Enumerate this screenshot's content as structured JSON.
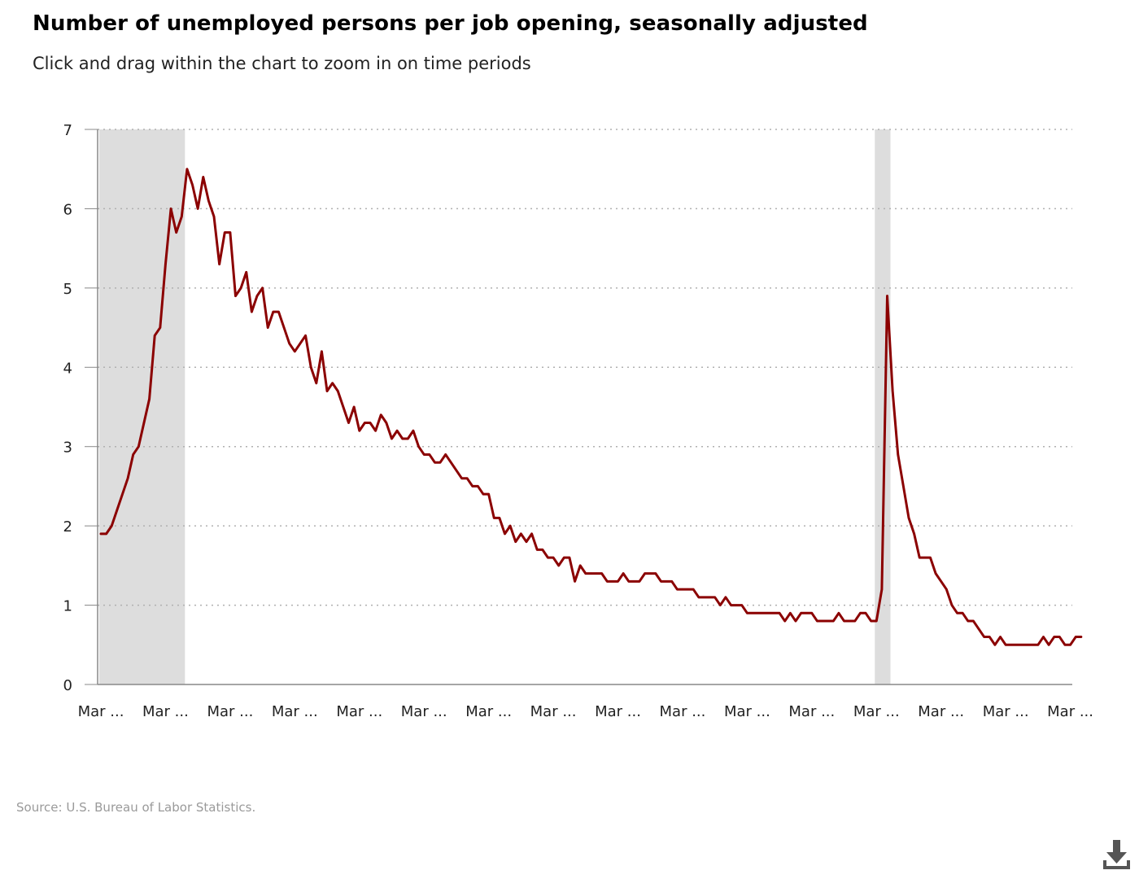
{
  "title": "Number of unemployed persons per job opening, seasonally adjusted",
  "subtitle": "Click and drag within the chart to zoom in on time periods",
  "source": "Source: U.S. Bureau of Labor Statistics.",
  "download_icon": "download-icon",
  "colors": {
    "line": "#8b0000",
    "recession_band": "#dddddd",
    "grid": "#b0b0b0",
    "axis": "#888888"
  },
  "chart_data": {
    "type": "line",
    "title": "Number of unemployed persons per job opening, seasonally adjusted",
    "xlabel": "",
    "ylabel": "",
    "ylim": [
      0,
      7
    ],
    "y_ticks": [
      0,
      1,
      2,
      3,
      4,
      5,
      6,
      7
    ],
    "x_tick_labels": [
      "Mar ...",
      "Mar ...",
      "Mar ...",
      "Mar ...",
      "Mar ...",
      "Mar ...",
      "Mar ...",
      "Mar ...",
      "Mar ...",
      "Mar ...",
      "Mar ...",
      "Mar ...",
      "Mar ...",
      "Mar ...",
      "Mar ...",
      "Mar ..."
    ],
    "grid": "horizontal dotted",
    "legend": "none",
    "x_period_start": "2008-03",
    "x_period_end": "2023-03",
    "x_step": "monthly",
    "recession_bands": [
      {
        "start_month_index": 0,
        "end_month_index": 15
      },
      {
        "start_month_index": 144,
        "end_month_index": 146
      }
    ],
    "series": [
      {
        "values": [
          1.9,
          1.9,
          2.0,
          2.2,
          2.4,
          2.6,
          2.9,
          3.0,
          3.3,
          3.6,
          4.4,
          4.5,
          5.3,
          6.0,
          5.7,
          5.9,
          6.5,
          6.3,
          6.0,
          6.4,
          6.1,
          5.9,
          5.3,
          5.7,
          5.7,
          4.9,
          5.0,
          5.2,
          4.7,
          4.9,
          5.0,
          4.5,
          4.7,
          4.7,
          4.5,
          4.3,
          4.2,
          4.3,
          4.4,
          4.0,
          3.8,
          4.2,
          3.7,
          3.8,
          3.7,
          3.5,
          3.3,
          3.5,
          3.2,
          3.3,
          3.3,
          3.2,
          3.4,
          3.3,
          3.1,
          3.2,
          3.1,
          3.1,
          3.2,
          3.0,
          2.9,
          2.9,
          2.8,
          2.8,
          2.9,
          2.8,
          2.7,
          2.6,
          2.6,
          2.5,
          2.5,
          2.4,
          2.4,
          2.1,
          2.1,
          1.9,
          2.0,
          1.8,
          1.9,
          1.8,
          1.9,
          1.7,
          1.7,
          1.6,
          1.6,
          1.5,
          1.6,
          1.6,
          1.3,
          1.5,
          1.4,
          1.4,
          1.4,
          1.4,
          1.3,
          1.3,
          1.3,
          1.4,
          1.3,
          1.3,
          1.3,
          1.4,
          1.4,
          1.4,
          1.3,
          1.3,
          1.3,
          1.2,
          1.2,
          1.2,
          1.2,
          1.1,
          1.1,
          1.1,
          1.1,
          1.0,
          1.1,
          1.0,
          1.0,
          1.0,
          0.9,
          0.9,
          0.9,
          0.9,
          0.9,
          0.9,
          0.9,
          0.8,
          0.9,
          0.8,
          0.9,
          0.9,
          0.9,
          0.8,
          0.8,
          0.8,
          0.8,
          0.9,
          0.8,
          0.8,
          0.8,
          0.9,
          0.9,
          0.8,
          0.8,
          1.2,
          4.9,
          3.7,
          2.9,
          2.5,
          2.1,
          1.9,
          1.6,
          1.6,
          1.6,
          1.4,
          1.3,
          1.2,
          1.0,
          0.9,
          0.9,
          0.8,
          0.8,
          0.7,
          0.6,
          0.6,
          0.5,
          0.6,
          0.5,
          0.5,
          0.5,
          0.5,
          0.5,
          0.5,
          0.5,
          0.6,
          0.5,
          0.6,
          0.6,
          0.5,
          0.5,
          0.6,
          0.6
        ]
      }
    ]
  }
}
